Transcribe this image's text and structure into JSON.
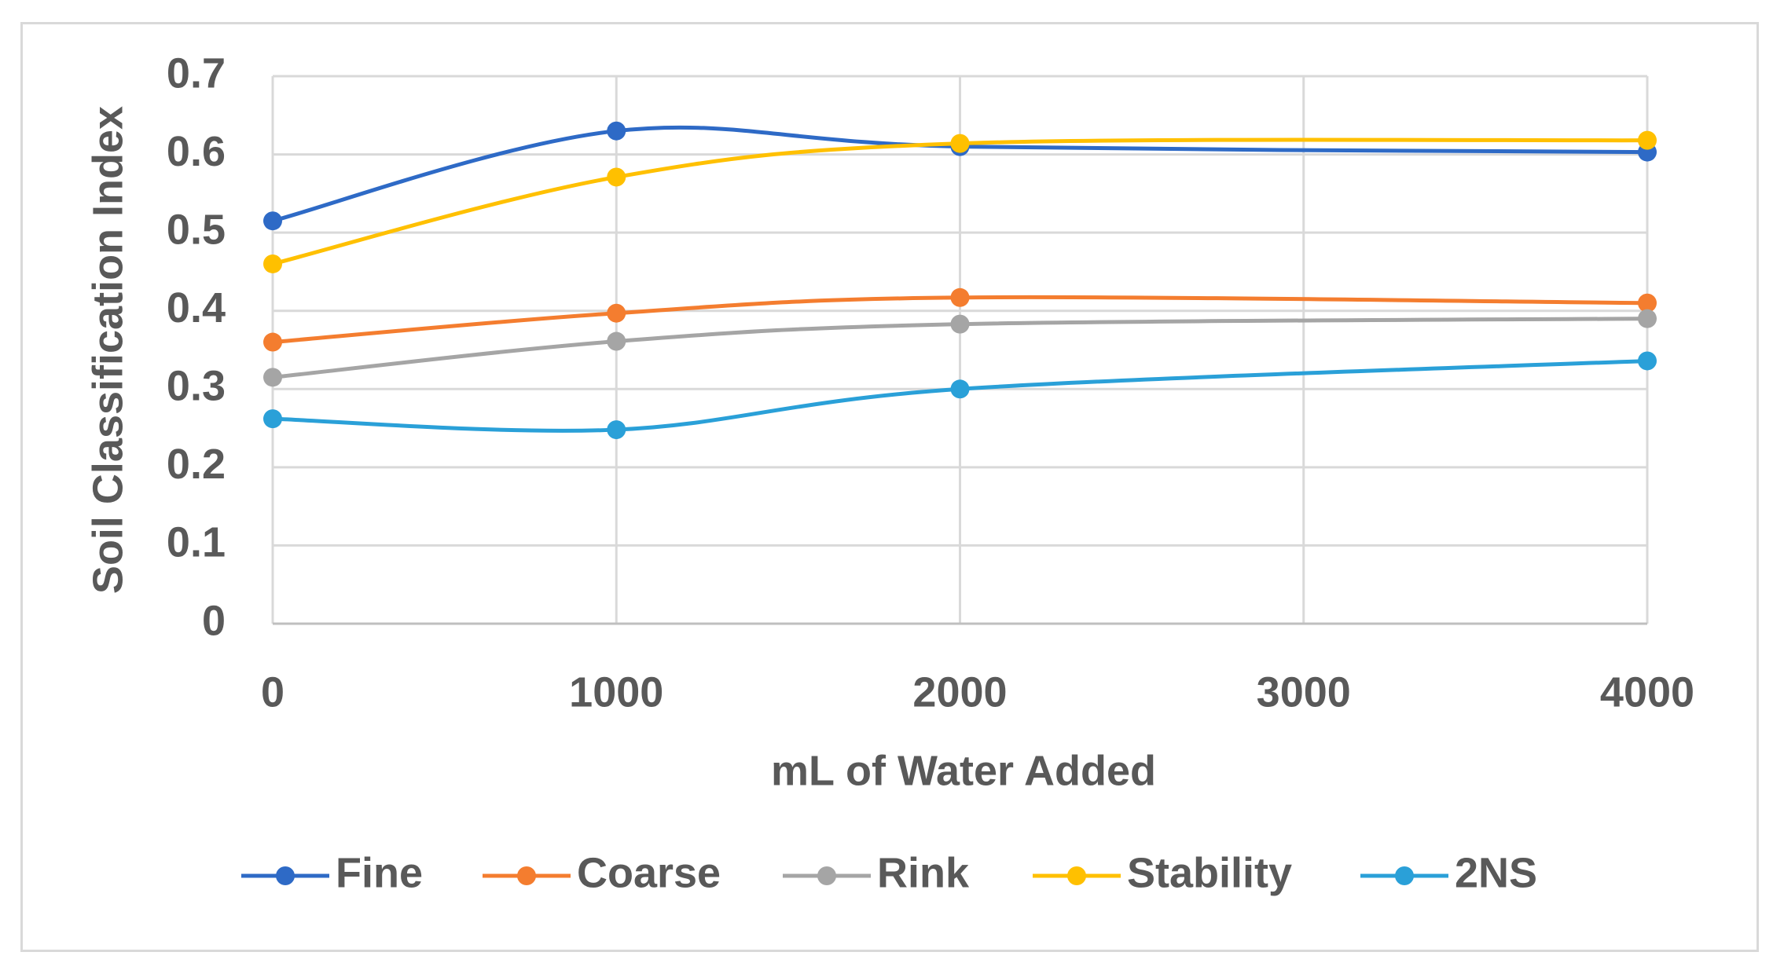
{
  "chart_data": {
    "type": "line",
    "smooth": true,
    "title": "",
    "xlabel": "mL of Water Added",
    "ylabel": "Soil Classification Index",
    "x": [
      0,
      1000,
      2000,
      4000
    ],
    "xlim": [
      0,
      4000
    ],
    "ylim": [
      0,
      0.7
    ],
    "x_ticks": [
      0,
      1000,
      2000,
      3000,
      4000
    ],
    "x_tick_labels": [
      "0",
      "1000",
      "2000",
      "3000",
      "4000"
    ],
    "y_ticks": [
      0,
      0.1,
      0.2,
      0.3,
      0.4,
      0.5,
      0.6,
      0.7
    ],
    "y_tick_labels": [
      "0",
      "0.1",
      "0.2",
      "0.3",
      "0.4",
      "0.5",
      "0.6",
      "0.7"
    ],
    "grid": true,
    "legend_position": "bottom",
    "series": [
      {
        "name": "Fine",
        "color": "#2e6ac6",
        "values": [
          0.515,
          0.63,
          0.61,
          0.603
        ]
      },
      {
        "name": "Coarse",
        "color": "#f47d2f",
        "values": [
          0.36,
          0.397,
          0.417,
          0.41
        ]
      },
      {
        "name": "Rink",
        "color": "#a5a5a5",
        "values": [
          0.315,
          0.361,
          0.383,
          0.39
        ]
      },
      {
        "name": "Stability",
        "color": "#ffc000",
        "values": [
          0.46,
          0.571,
          0.614,
          0.618
        ]
      },
      {
        "name": "2NS",
        "color": "#2aa0d8",
        "values": [
          0.262,
          0.248,
          0.3,
          0.336
        ]
      }
    ]
  }
}
